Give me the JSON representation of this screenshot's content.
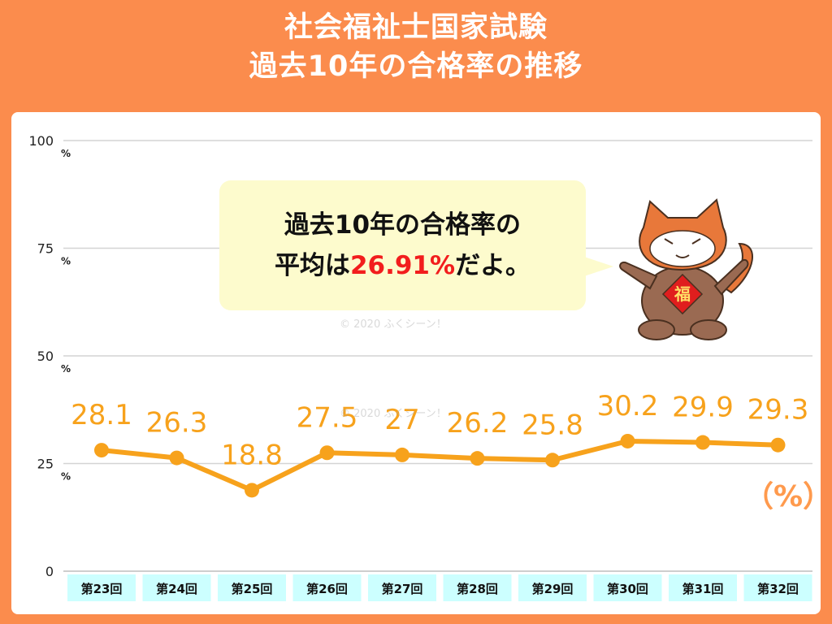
{
  "title": {
    "line1": "社会福祉士国家試験",
    "line2": "過去10年の合格率の推移"
  },
  "bubble": {
    "line1": "過去10年の合格率の",
    "line2_prefix": "平均は",
    "line2_highlight": "26.91%",
    "line2_suffix": "だよ。"
  },
  "mascot": {
    "badge_text": "福",
    "icon": "red-panda-mascot"
  },
  "watermark": "© 2020 ふくシーン！",
  "unit_label": "（%）",
  "colors": {
    "frame": "#fb8c4d",
    "line": "#f7a21c",
    "value_label": "#f7a21c",
    "category_bg": "#ccffff",
    "highlight": "#f21d1d",
    "bubble_bg": "#fdfbcd"
  },
  "chart_data": {
    "type": "line",
    "categories": [
      "第23回",
      "第24回",
      "第25回",
      "第26回",
      "第27回",
      "第28回",
      "第29回",
      "第30回",
      "第31回",
      "第32回"
    ],
    "series": [
      {
        "values": [
          28.1,
          26.3,
          18.8,
          27.5,
          27,
          26.2,
          25.8,
          30.2,
          29.9,
          29.3
        ]
      }
    ],
    "value_labels": [
      "28.1",
      "26.3",
      "18.8",
      "27.5",
      "27",
      "26.2",
      "25.8",
      "30.2",
      "29.9",
      "29.3"
    ],
    "y_ticks": [
      {
        "value": 0,
        "label": "0",
        "unit": ""
      },
      {
        "value": 25,
        "label": "25",
        "unit": "%"
      },
      {
        "value": 50,
        "label": "50",
        "unit": "%"
      },
      {
        "value": 75,
        "label": "75",
        "unit": "%"
      },
      {
        "value": 100,
        "label": "100",
        "unit": "%"
      }
    ],
    "ylim": [
      0,
      100
    ],
    "grid": true,
    "legend": "none"
  }
}
